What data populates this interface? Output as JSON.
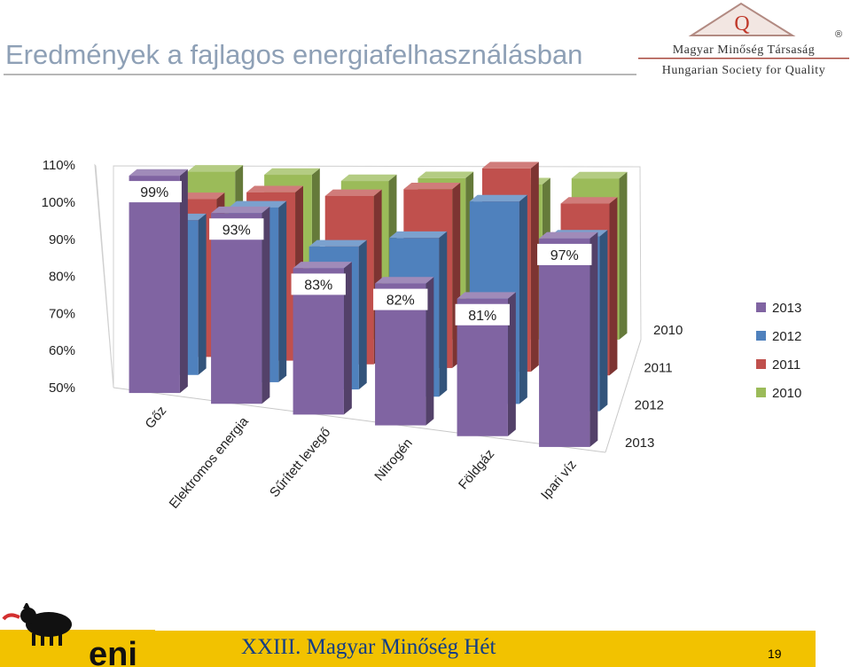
{
  "header": {
    "title": "Eredmények a fajlagos energiafelhasználásban",
    "logo_text_1": "Magyar Minőség Társaság",
    "logo_text_2": "Hungarian Society for Quality",
    "logo_letter": "Q",
    "logo_mark": "®"
  },
  "footer": {
    "event": "XXIII. Magyar Minőség Hét",
    "page": "19",
    "logo_text": "eni"
  },
  "colors": {
    "2013": "#8064a2",
    "2012": "#4f81bd",
    "2011": "#c0504d",
    "2010": "#9bbb59",
    "footer": "#f2c200",
    "title": "#8ea0b6"
  },
  "chart_data": {
    "type": "bar",
    "categories": [
      "Gőz",
      "Elektromos energia",
      "Sűrített levegő",
      "Nitrogén",
      "Földgáz",
      "Ipari víz"
    ],
    "series": [
      {
        "name": "2013",
        "values": [
          99,
          93,
          83,
          82,
          81,
          97
        ],
        "data_labels": [
          "99%",
          "93%",
          "83%",
          "82%",
          "81%",
          "97%"
        ]
      },
      {
        "name": "2012",
        "values": [
          89,
          94,
          86,
          90,
          101,
          94
        ]
      },
      {
        "name": "2011",
        "values": [
          95,
          98,
          98,
          101,
          108,
          99
        ]
      },
      {
        "name": "2010",
        "values": [
          105,
          104,
          102,
          103,
          101,
          103
        ]
      }
    ],
    "depth_labels": [
      "2013",
      "2012",
      "2011",
      "2010"
    ],
    "y_ticks": [
      "50%",
      "60%",
      "70%",
      "80%",
      "90%",
      "100%",
      "110%"
    ],
    "ylim": [
      50,
      110
    ],
    "legend": [
      "2013",
      "2012",
      "2011",
      "2010"
    ],
    "legend_position": "right",
    "grid": false
  }
}
